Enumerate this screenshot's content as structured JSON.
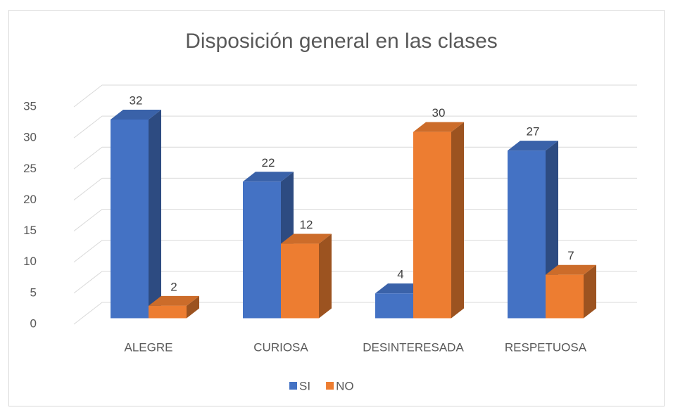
{
  "chart_data": {
    "type": "bar3d",
    "title": "Disposición general en las clases",
    "categories": [
      "ALEGRE",
      "CURIOSA",
      "DESINTERESADA",
      "RESPETUOSA"
    ],
    "series": [
      {
        "name": "SI",
        "color": "#4472c4",
        "values": [
          32,
          22,
          4,
          27
        ]
      },
      {
        "name": "NO",
        "color": "#ed7d31",
        "values": [
          2,
          12,
          30,
          7
        ]
      }
    ],
    "ylim": [
      0,
      35
    ],
    "yticks": [
      0,
      5,
      10,
      15,
      20,
      25,
      30,
      35
    ],
    "grid": true,
    "legend": "bottom"
  }
}
